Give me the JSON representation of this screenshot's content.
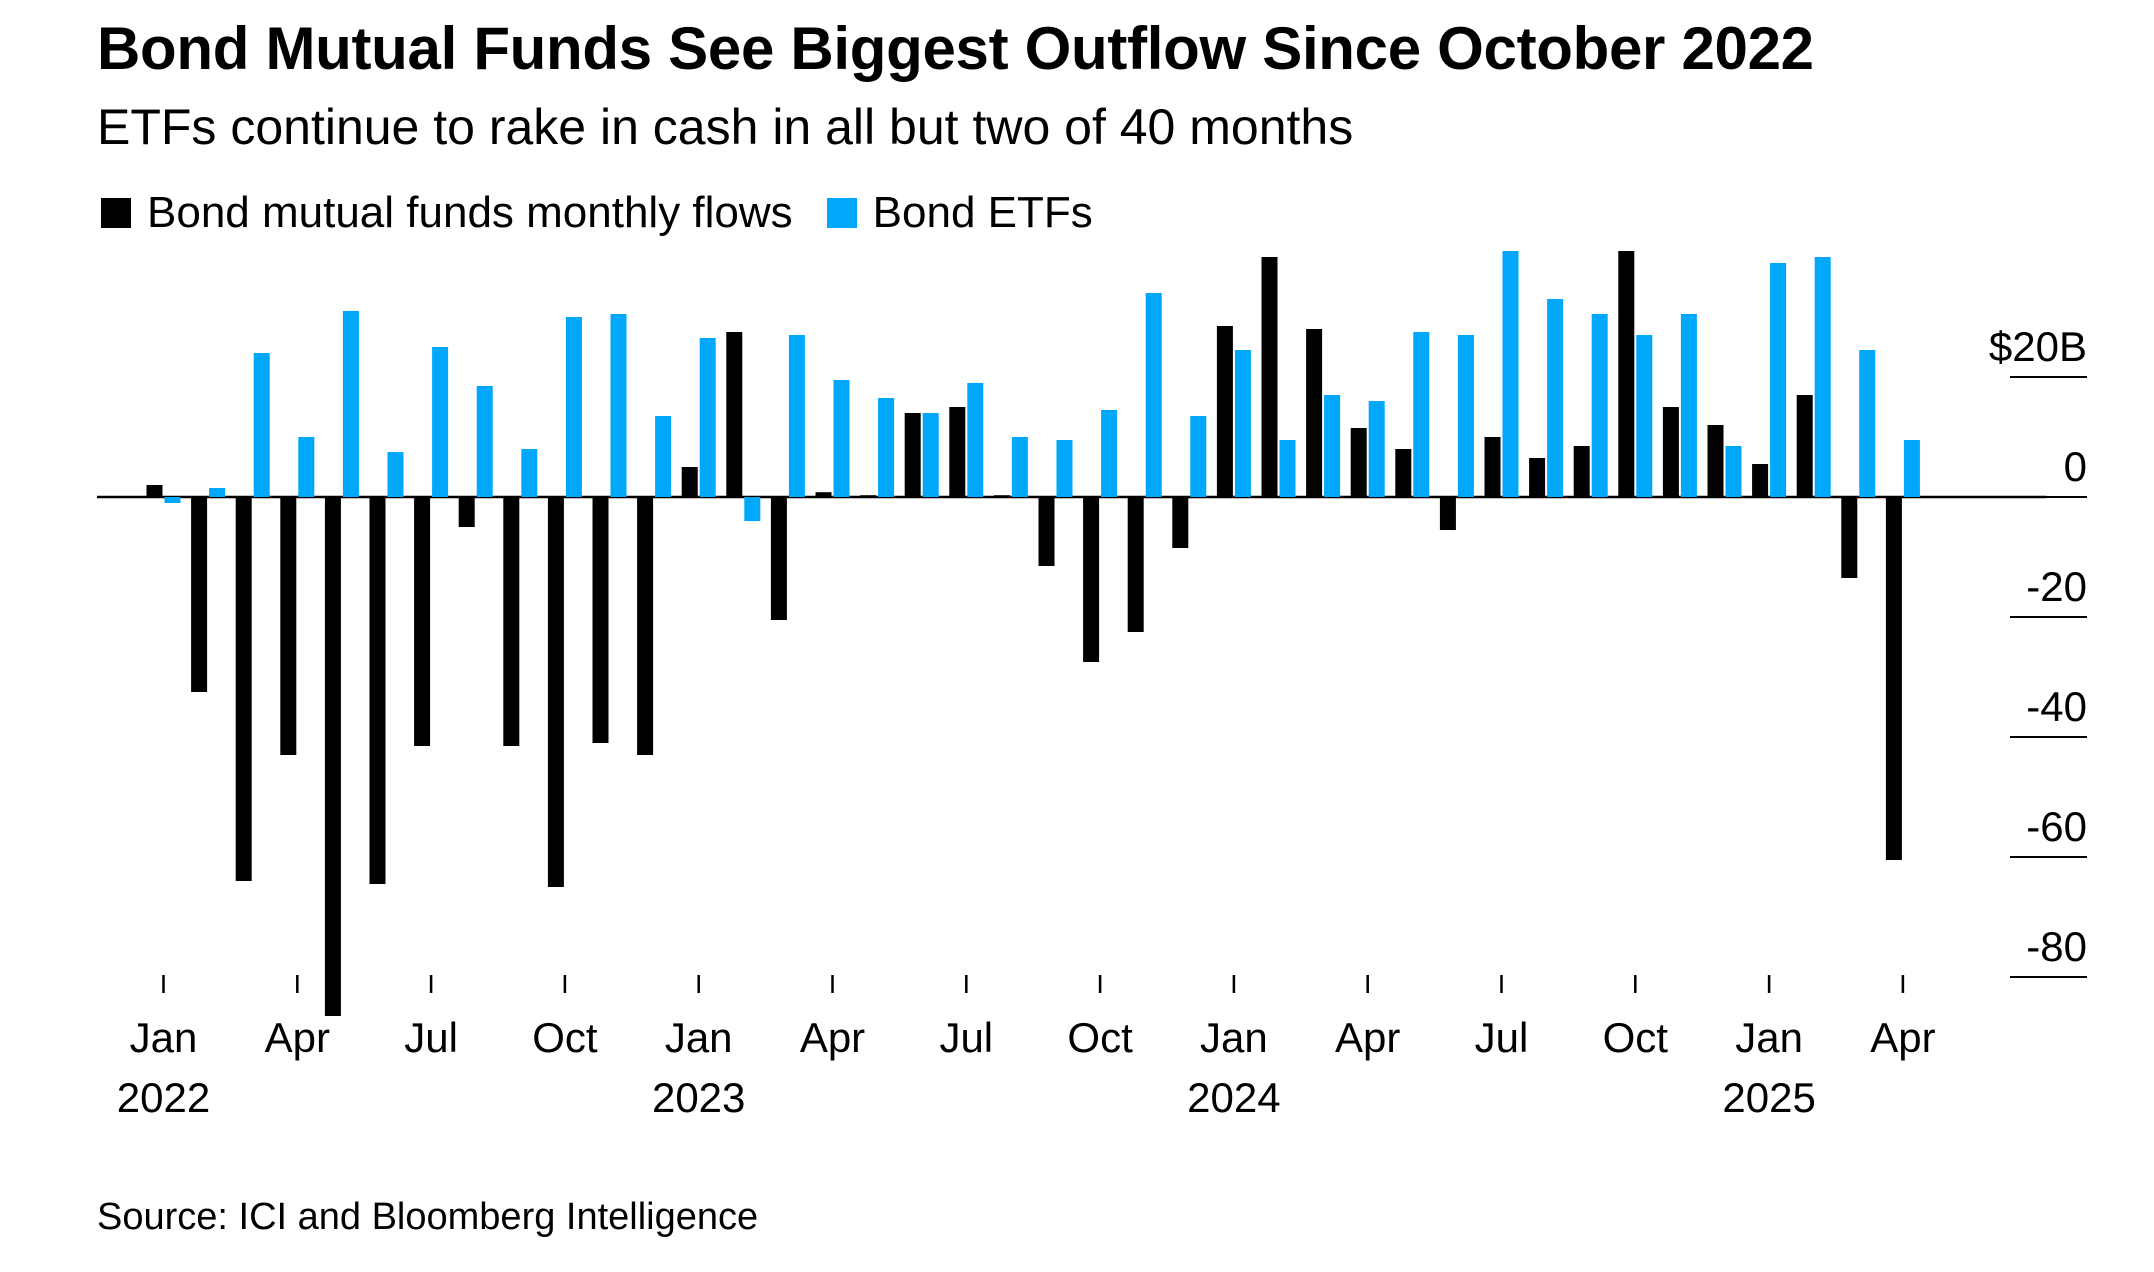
{
  "title": "Bond Mutual Funds See Biggest Outflow Since October 2022",
  "subtitle": "ETFs continue to rake in cash in all but two of 40 months",
  "source": "Source: ICI and Bloomberg Intelligence",
  "colors": {
    "mutual_funds": "#000000",
    "etfs": "#00A7FA"
  },
  "chart_data": {
    "type": "bar",
    "categories": [
      "Jan 2022",
      "Feb 2022",
      "Mar 2022",
      "Apr 2022",
      "May 2022",
      "Jun 2022",
      "Jul 2022",
      "Aug 2022",
      "Sep 2022",
      "Oct 2022",
      "Nov 2022",
      "Dec 2022",
      "Jan 2023",
      "Feb 2023",
      "Mar 2023",
      "Apr 2023",
      "May 2023",
      "Jun 2023",
      "Jul 2023",
      "Aug 2023",
      "Sep 2023",
      "Oct 2023",
      "Nov 2023",
      "Dec 2023",
      "Jan 2024",
      "Feb 2024",
      "Mar 2024",
      "Apr 2024",
      "May 2024",
      "Jun 2024",
      "Jul 2024",
      "Aug 2024",
      "Sep 2024",
      "Oct 2024",
      "Nov 2024",
      "Dec 2024",
      "Jan 2025",
      "Feb 2025",
      "Mar 2025",
      "Apr 2025"
    ],
    "series": [
      {
        "name": "Bond mutual funds monthly flows",
        "values": [
          2,
          -32.5,
          -64,
          -43,
          -86.5,
          -64.5,
          -41.5,
          -5,
          -41.5,
          -65,
          -41,
          -43,
          5,
          27.5,
          -20.5,
          0.8,
          0.3,
          14,
          15,
          0.3,
          -11.5,
          -27.5,
          -22.5,
          -8.5,
          28.5,
          40,
          28,
          11.5,
          8,
          -5.5,
          10,
          6.5,
          8.5,
          41,
          15,
          12,
          5.5,
          17,
          -13.5,
          -60.5
        ]
      },
      {
        "name": "Bond ETFs",
        "values": [
          -1,
          1.5,
          24,
          10,
          31,
          7.5,
          25,
          18.5,
          8,
          30,
          30.5,
          13.5,
          26.5,
          -4,
          27,
          19.5,
          16.5,
          14,
          19,
          10,
          9.5,
          14.5,
          34,
          13.5,
          24.5,
          9.5,
          17,
          16,
          27.5,
          27,
          41,
          33,
          30.5,
          27,
          30.5,
          8.5,
          39,
          40,
          24.5,
          9.5
        ]
      }
    ],
    "x_tick_labels": [
      {
        "index": 0,
        "month": "Jan",
        "year": "2022"
      },
      {
        "index": 3,
        "month": "Apr",
        "year": ""
      },
      {
        "index": 6,
        "month": "Jul",
        "year": ""
      },
      {
        "index": 9,
        "month": "Oct",
        "year": ""
      },
      {
        "index": 12,
        "month": "Jan",
        "year": "2023"
      },
      {
        "index": 15,
        "month": "Apr",
        "year": ""
      },
      {
        "index": 18,
        "month": "Jul",
        "year": ""
      },
      {
        "index": 21,
        "month": "Oct",
        "year": ""
      },
      {
        "index": 24,
        "month": "Jan",
        "year": "2024"
      },
      {
        "index": 27,
        "month": "Apr",
        "year": ""
      },
      {
        "index": 30,
        "month": "Jul",
        "year": ""
      },
      {
        "index": 33,
        "month": "Oct",
        "year": ""
      },
      {
        "index": 36,
        "month": "Jan",
        "year": "2025"
      },
      {
        "index": 39,
        "month": "Apr",
        "year": ""
      }
    ],
    "y_ticks": [
      {
        "value": 20,
        "label": "$20B"
      },
      {
        "value": 0,
        "label": "0"
      },
      {
        "value": -20,
        "label": "-20"
      },
      {
        "value": -40,
        "label": "-40"
      },
      {
        "value": -60,
        "label": "-60"
      },
      {
        "value": -80,
        "label": "-80"
      }
    ],
    "ylim": [
      -86.5,
      41
    ],
    "y_axis_position": "right",
    "legend_position": "top-left",
    "grid": false
  }
}
